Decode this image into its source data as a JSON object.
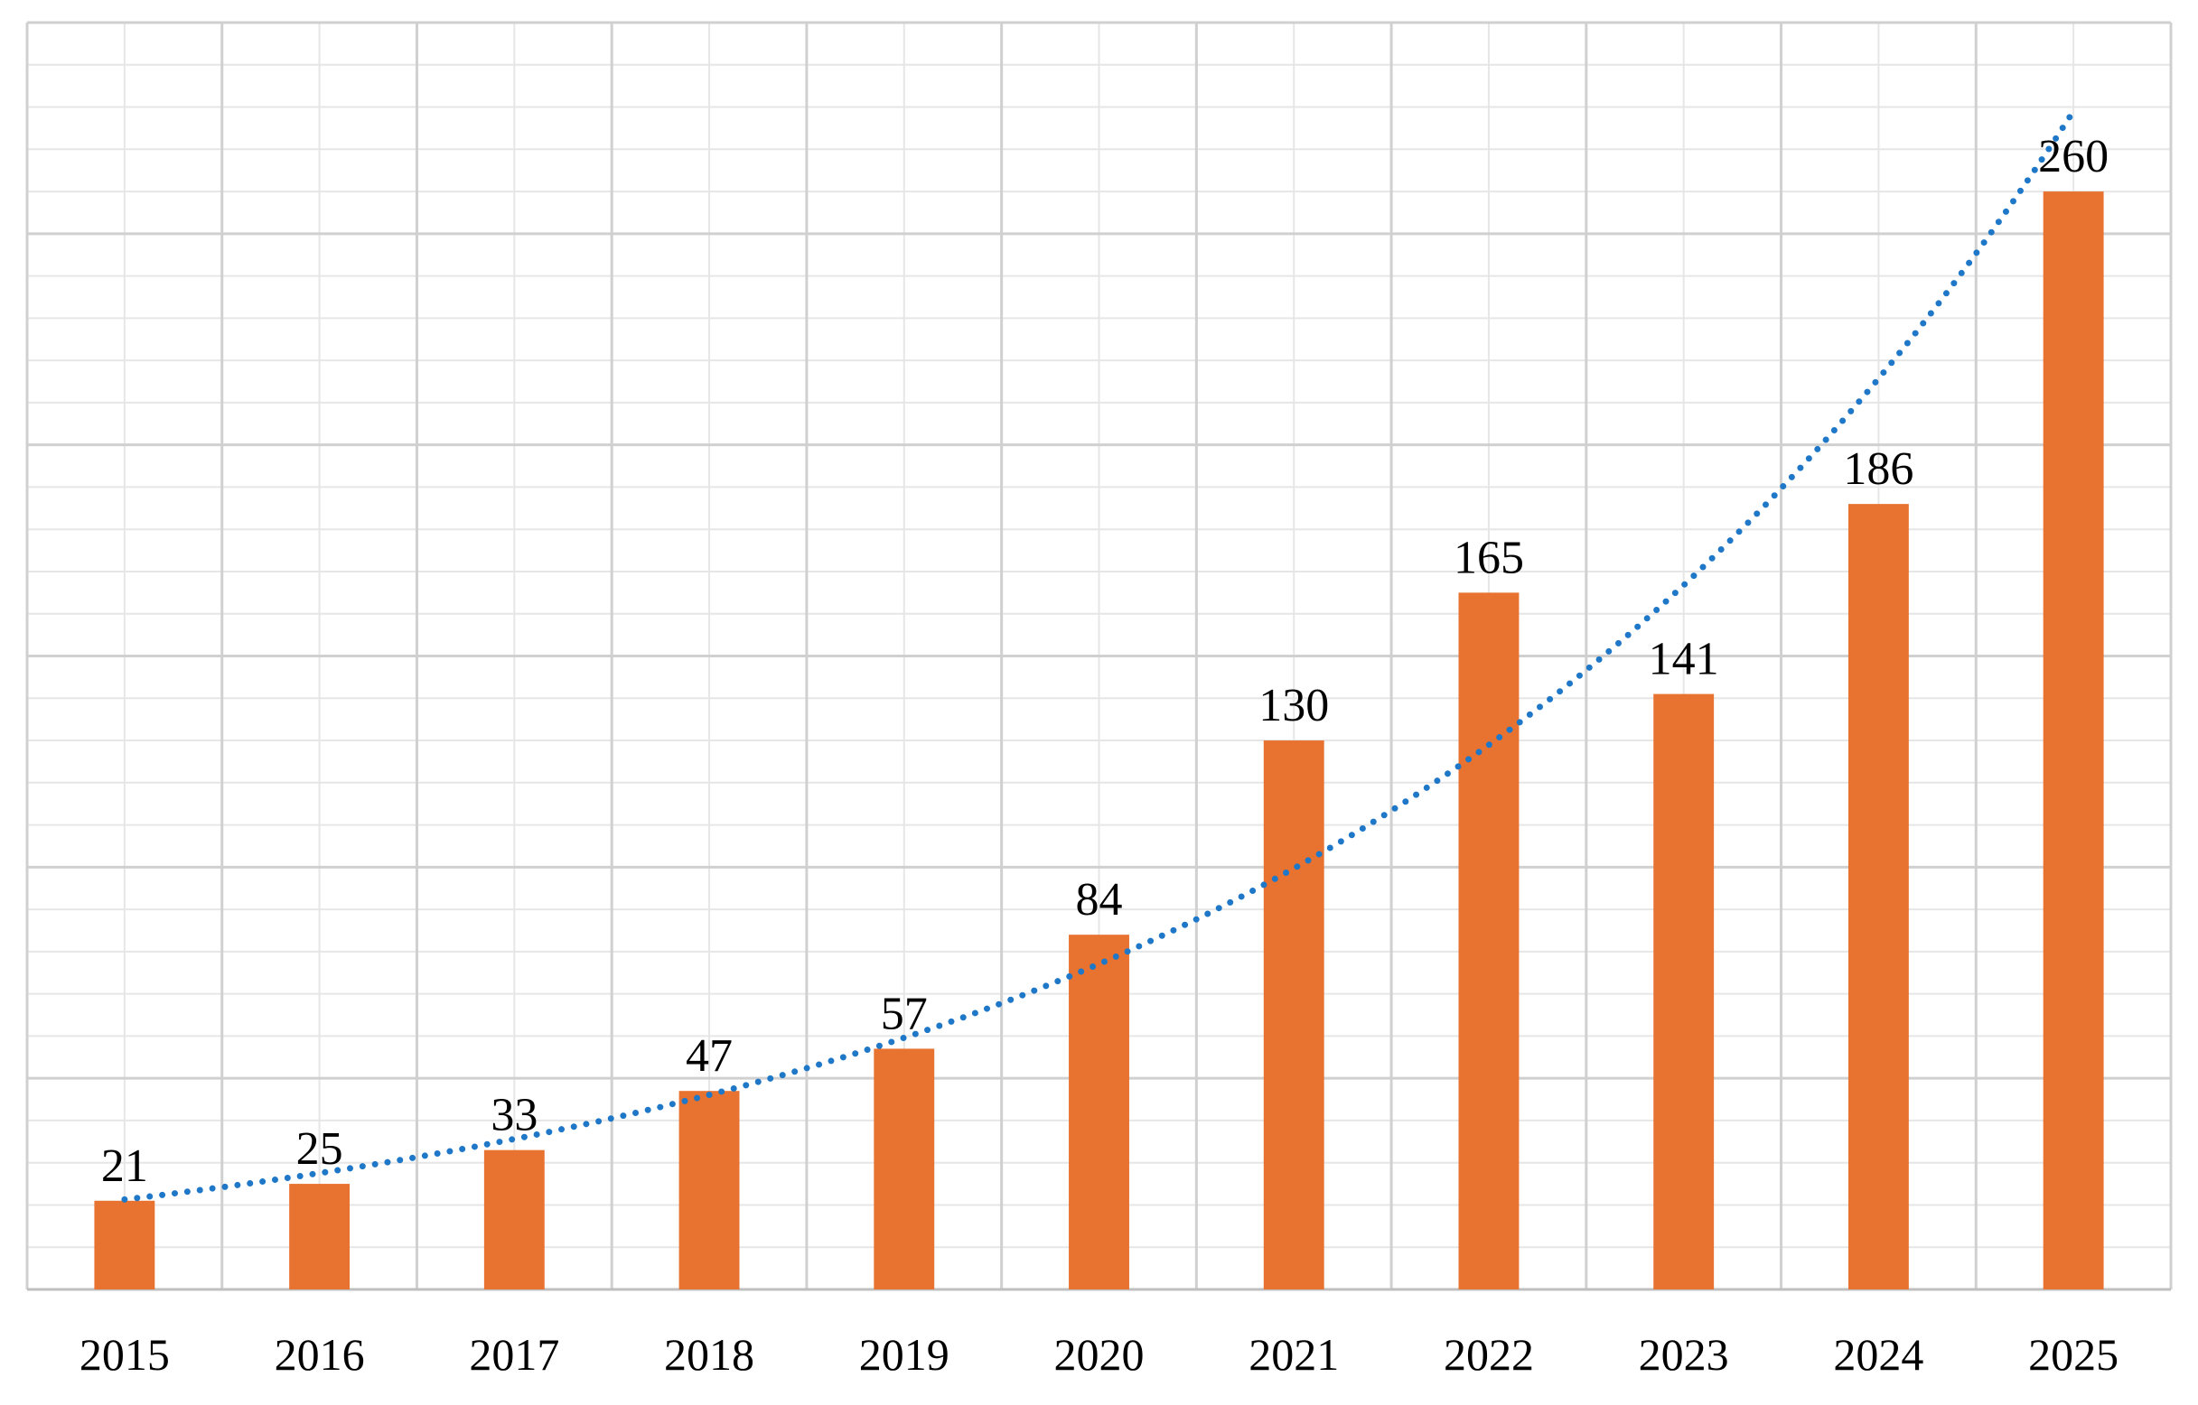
{
  "chart_data": {
    "type": "bar",
    "categories": [
      "2015",
      "2016",
      "2017",
      "2018",
      "2019",
      "2020",
      "2021",
      "2022",
      "2023",
      "2024",
      "2025"
    ],
    "values": [
      21,
      25,
      33,
      47,
      57,
      84,
      130,
      165,
      141,
      186,
      260
    ],
    "title": "",
    "xlabel": "",
    "ylabel": "",
    "ylim": [
      0,
      300
    ],
    "grid": true,
    "y_axis_labels_shown": false,
    "data_labels": true,
    "bar_color": "#E8722F",
    "trendline": {
      "type": "exponential",
      "style": "dotted",
      "color": "#1F77C8"
    },
    "legend": "none"
  }
}
